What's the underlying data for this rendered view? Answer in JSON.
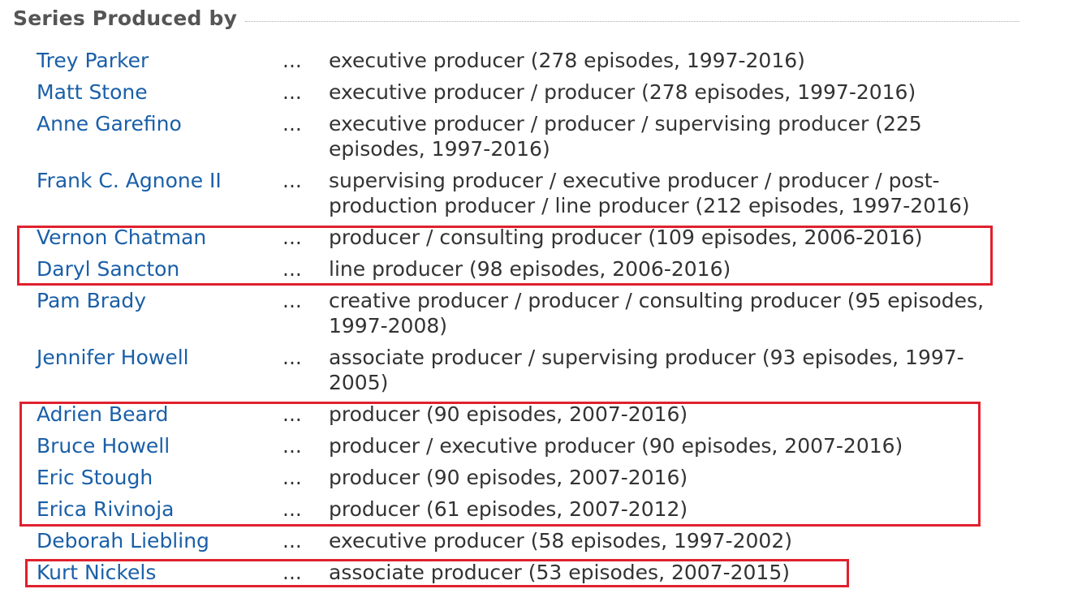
{
  "section": {
    "title": "Series Produced by"
  },
  "separator": "...",
  "producers": [
    {
      "name": "Trey Parker",
      "credit": "executive producer (278 episodes, 1997-2016)"
    },
    {
      "name": "Matt Stone",
      "credit": "executive producer / producer (278 episodes, 1997-2016)"
    },
    {
      "name": "Anne Garefino",
      "credit": "executive producer / producer / supervising producer (225 episodes, 1997-2016)"
    },
    {
      "name": "Frank C. Agnone II",
      "credit": "supervising producer / executive producer / producer / post-production producer / line producer (212 episodes, 1997-2016)"
    },
    {
      "name": "Vernon Chatman",
      "credit": "producer / consulting producer (109 episodes, 2006-2016)"
    },
    {
      "name": "Daryl Sancton",
      "credit": "line producer (98 episodes, 2006-2016)"
    },
    {
      "name": "Pam Brady",
      "credit": "creative producer / producer / consulting producer (95 episodes, 1997-2008)"
    },
    {
      "name": "Jennifer Howell",
      "credit": "associate producer / supervising producer (93 episodes, 1997-2005)"
    },
    {
      "name": "Adrien Beard",
      "credit": "producer (90 episodes, 2007-2016)"
    },
    {
      "name": "Bruce Howell",
      "credit": "producer / executive producer (90 episodes, 2007-2016)"
    },
    {
      "name": "Eric Stough",
      "credit": "producer (90 episodes, 2007-2016)"
    },
    {
      "name": "Erica Rivinoja",
      "credit": "producer (61 episodes, 2007-2012)"
    },
    {
      "name": "Deborah Liebling",
      "credit": "executive producer (58 episodes, 1997-2002)"
    },
    {
      "name": "Kurt Nickels",
      "credit": "associate producer (53 episodes, 2007-2015)"
    }
  ],
  "colors": {
    "link": "#1a5fa8",
    "text": "#333333",
    "heading": "#555555",
    "highlight": "#e0202e"
  }
}
